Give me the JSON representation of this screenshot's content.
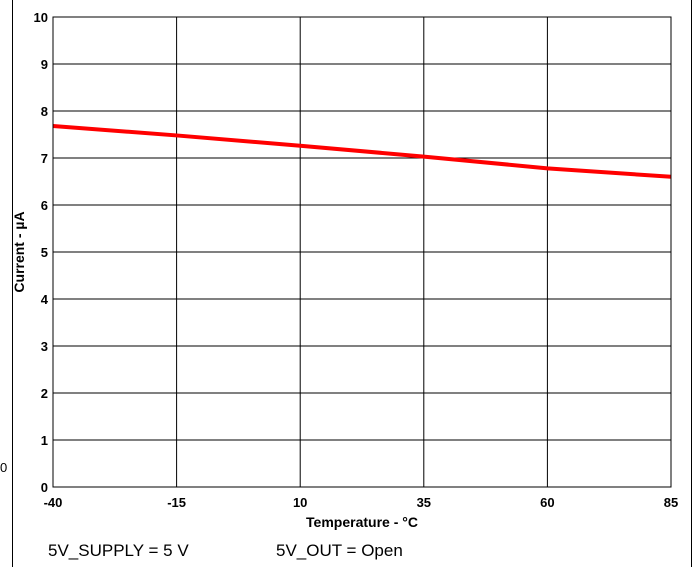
{
  "chart_data": {
    "type": "line",
    "title": "",
    "xlabel": "Temperature - °C",
    "ylabel": "Current - µA",
    "x": [
      -40,
      -15,
      10,
      35,
      60,
      85
    ],
    "series": [
      {
        "values": [
          7.68,
          7.48,
          7.26,
          7.03,
          6.78,
          6.6
        ],
        "color": "#ff0000"
      }
    ],
    "xlim": [
      -40,
      85
    ],
    "ylim": [
      0,
      10
    ],
    "xticks": [
      -40,
      -15,
      10,
      35,
      60,
      85
    ],
    "yticks": [
      0,
      1,
      2,
      3,
      4,
      5,
      6,
      7,
      8,
      9,
      10
    ],
    "grid": true
  },
  "conditions": [
    "5V_SUPPLY = 5 V",
    "5V_OUT = Open"
  ],
  "stray_label": "0"
}
